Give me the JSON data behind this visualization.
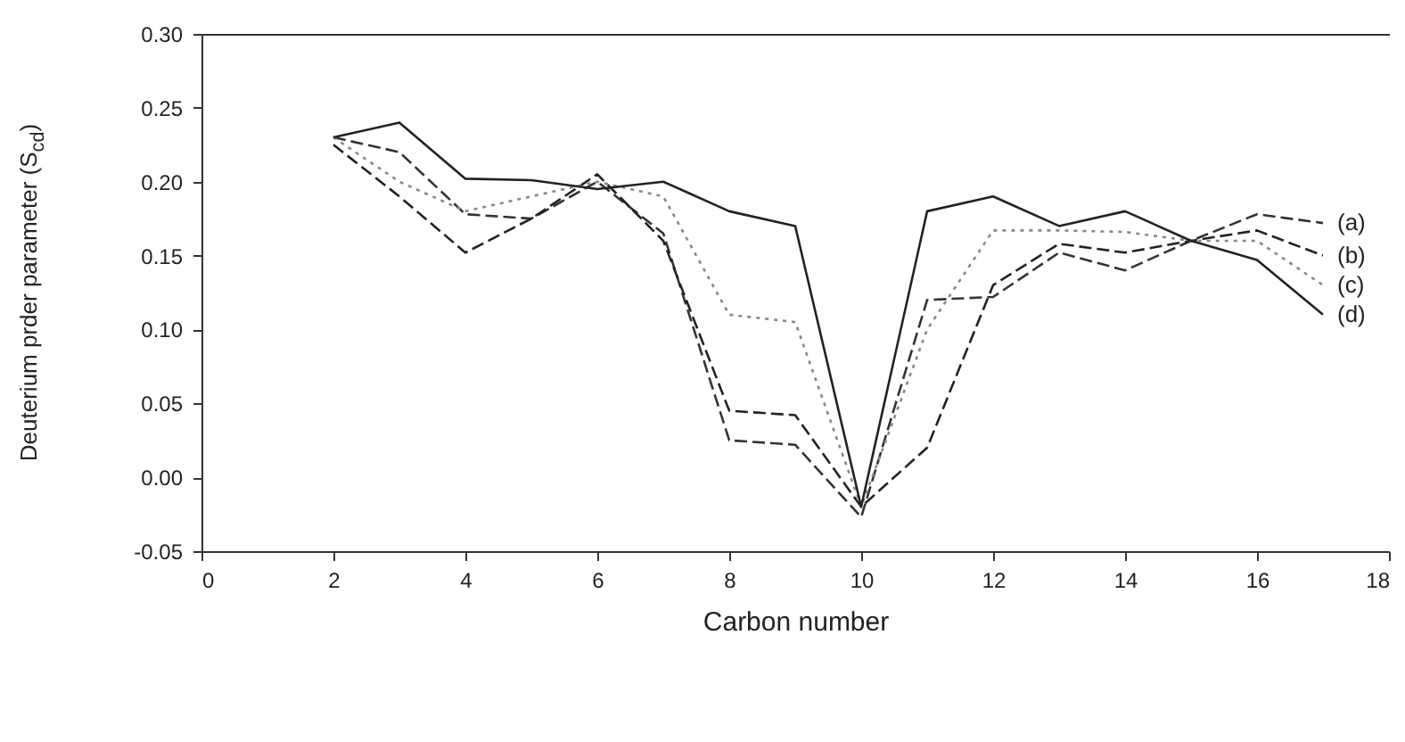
{
  "chart_data": {
    "type": "line",
    "xlabel": "Carbon number",
    "ylabel": "Deuterium prder parameter (S$_{cd}$)",
    "x": [
      2,
      3,
      4,
      5,
      6,
      7,
      8,
      9,
      10,
      11,
      12,
      13,
      14,
      15,
      16,
      17
    ],
    "series": [
      {
        "name": "(a)",
        "color": "#333333",
        "line_style": "dashed",
        "values": [
          0.23,
          0.22,
          0.178,
          0.175,
          0.2,
          0.165,
          0.025,
          0.022,
          -0.027,
          0.12,
          0.122,
          0.152,
          0.14,
          0.16,
          0.178,
          0.172
        ]
      },
      {
        "name": "(b)",
        "color": "#222222",
        "line_style": "dashed",
        "values": [
          0.225,
          0.19,
          0.152,
          0.175,
          0.205,
          0.16,
          0.045,
          0.042,
          -0.02,
          0.02,
          0.13,
          0.158,
          0.152,
          0.16,
          0.167,
          0.15
        ]
      },
      {
        "name": "(c)",
        "color": "#888888",
        "line_style": "dotted",
        "values": [
          0.23,
          0.2,
          0.18,
          0.19,
          0.2,
          0.19,
          0.11,
          0.105,
          -0.02,
          0.1,
          0.167,
          0.167,
          0.166,
          0.16,
          0.16,
          0.13
        ]
      },
      {
        "name": "(d)",
        "color": "#222222",
        "line_style": "solid",
        "values": [
          0.23,
          0.24,
          0.202,
          0.201,
          0.195,
          0.2,
          0.18,
          0.17,
          -0.02,
          0.18,
          0.19,
          0.17,
          0.18,
          0.16,
          0.147,
          0.11
        ]
      }
    ],
    "xlim": [
      0,
      18
    ],
    "xticks": [
      0,
      2,
      4,
      6,
      8,
      10,
      12,
      14,
      16,
      18
    ],
    "ylim": [
      -0.05,
      0.3
    ],
    "yticks": [
      {
        "value": -0.05,
        "label": "-0.05"
      },
      {
        "value": 0,
        "label": "0.00"
      },
      {
        "value": 0.05,
        "label": "0.05"
      },
      {
        "value": 0.1,
        "label": "0.10"
      },
      {
        "value": 0.15,
        "label": "0.15"
      },
      {
        "value": 0.2,
        "label": "0.20"
      },
      {
        "value": 0.25,
        "label": "0.25"
      },
      {
        "value": 0.3,
        "label": "0.30"
      }
    ],
    "grid": false
  }
}
